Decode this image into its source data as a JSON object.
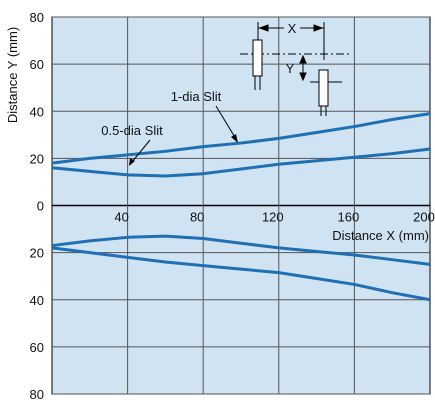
{
  "chart_data": {
    "type": "line",
    "y_label": "Distance Y (mm)",
    "x_label": "Distance X (mm)",
    "x": [
      0,
      20,
      40,
      60,
      80,
      100,
      120,
      140,
      160,
      180,
      200
    ],
    "xlim": [
      0,
      200
    ],
    "xticks": [
      40,
      80,
      120,
      160,
      200
    ],
    "ylim": [
      -80,
      80
    ],
    "yticks": [
      {
        "value": -80,
        "label": "80"
      },
      {
        "value": -60,
        "label": "60"
      },
      {
        "value": -40,
        "label": "40"
      },
      {
        "value": -20,
        "label": "20"
      },
      0,
      20,
      40,
      60,
      80
    ],
    "grid": true,
    "background": "#cfe3f3",
    "series": [
      {
        "name": "1-dia Slit",
        "color": "#1f6fb5",
        "values": [
          18,
          20,
          21.5,
          23,
          25,
          26.5,
          28.5,
          31,
          33.5,
          36.5,
          39
        ],
        "lower_values": [
          -18,
          -20,
          -22,
          -24,
          -25.5,
          -27,
          -28.5,
          -31,
          -33.5,
          -37,
          -40
        ]
      },
      {
        "name": "0.5-dia Slit",
        "color": "#1f6fb5",
        "values": [
          16,
          14.5,
          13,
          12.5,
          13.5,
          15.5,
          17.5,
          19,
          20.5,
          22,
          24
        ],
        "lower_values": [
          -17,
          -15,
          -13.5,
          -13,
          -14,
          -16,
          -18,
          -19.5,
          -21,
          -23,
          -25
        ]
      }
    ],
    "inset_labels": [
      "X",
      "Y"
    ]
  }
}
